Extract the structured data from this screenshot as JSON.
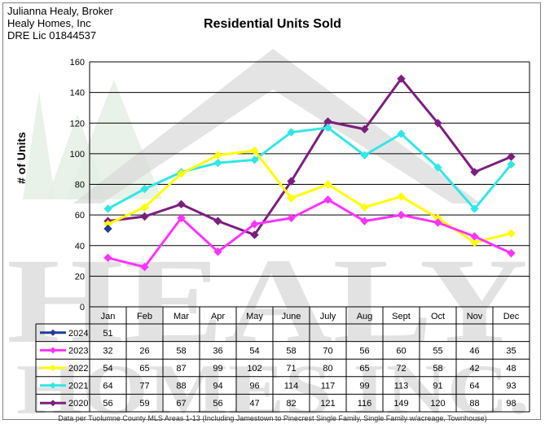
{
  "broker": {
    "line1": "Julianna Healy, Broker",
    "line2": "Healy Homes, Inc",
    "line3": "DRE Lic 01844537"
  },
  "watermark": {
    "row1": "HEALY",
    "row2": "HOMES INC.",
    "color": "#d9d9d9",
    "tree_color": "#e3efe3"
  },
  "footnote": "Data per Tuolumne County MLS Areas 1-13 (Including Jamestown to Pinecrest Single Family, Single Family w/acreage, Townhouse)",
  "chart_data": {
    "type": "line",
    "title": "Residential Units Sold",
    "ylabel": "# of Units",
    "xlabel": "",
    "ylim": [
      0,
      160
    ],
    "yticks": [
      0,
      20,
      40,
      60,
      80,
      100,
      120,
      140,
      160
    ],
    "grid": true,
    "legend": "table-below",
    "categories": [
      "Jan",
      "Feb",
      "Mar",
      "Apr",
      "May",
      "June",
      "July",
      "Aug",
      "Sept",
      "Oct",
      "Nov",
      "Dec"
    ],
    "series": [
      {
        "name": "2024",
        "color": "#1f3d99",
        "marker": "diamond",
        "values": [
          51,
          null,
          null,
          null,
          null,
          null,
          null,
          null,
          null,
          null,
          null,
          null
        ]
      },
      {
        "name": "2023",
        "color": "#ff33ff",
        "marker": "diamond",
        "values": [
          32,
          26,
          58,
          36,
          54,
          58,
          70,
          56,
          60,
          55,
          46,
          35
        ]
      },
      {
        "name": "2022",
        "color": "#ffff00",
        "marker": "diamond",
        "values": [
          54,
          65,
          87,
          99,
          102,
          71,
          80,
          65,
          72,
          58,
          42,
          48
        ]
      },
      {
        "name": "2021",
        "color": "#33e6e6",
        "marker": "diamond",
        "values": [
          64,
          77,
          88,
          94,
          96,
          114,
          117,
          99,
          113,
          91,
          64,
          93
        ]
      },
      {
        "name": "2020",
        "color": "#7b1f7f",
        "marker": "diamond",
        "values": [
          56,
          59,
          67,
          56,
          47,
          82,
          121,
          116,
          149,
          120,
          88,
          98
        ]
      }
    ]
  }
}
